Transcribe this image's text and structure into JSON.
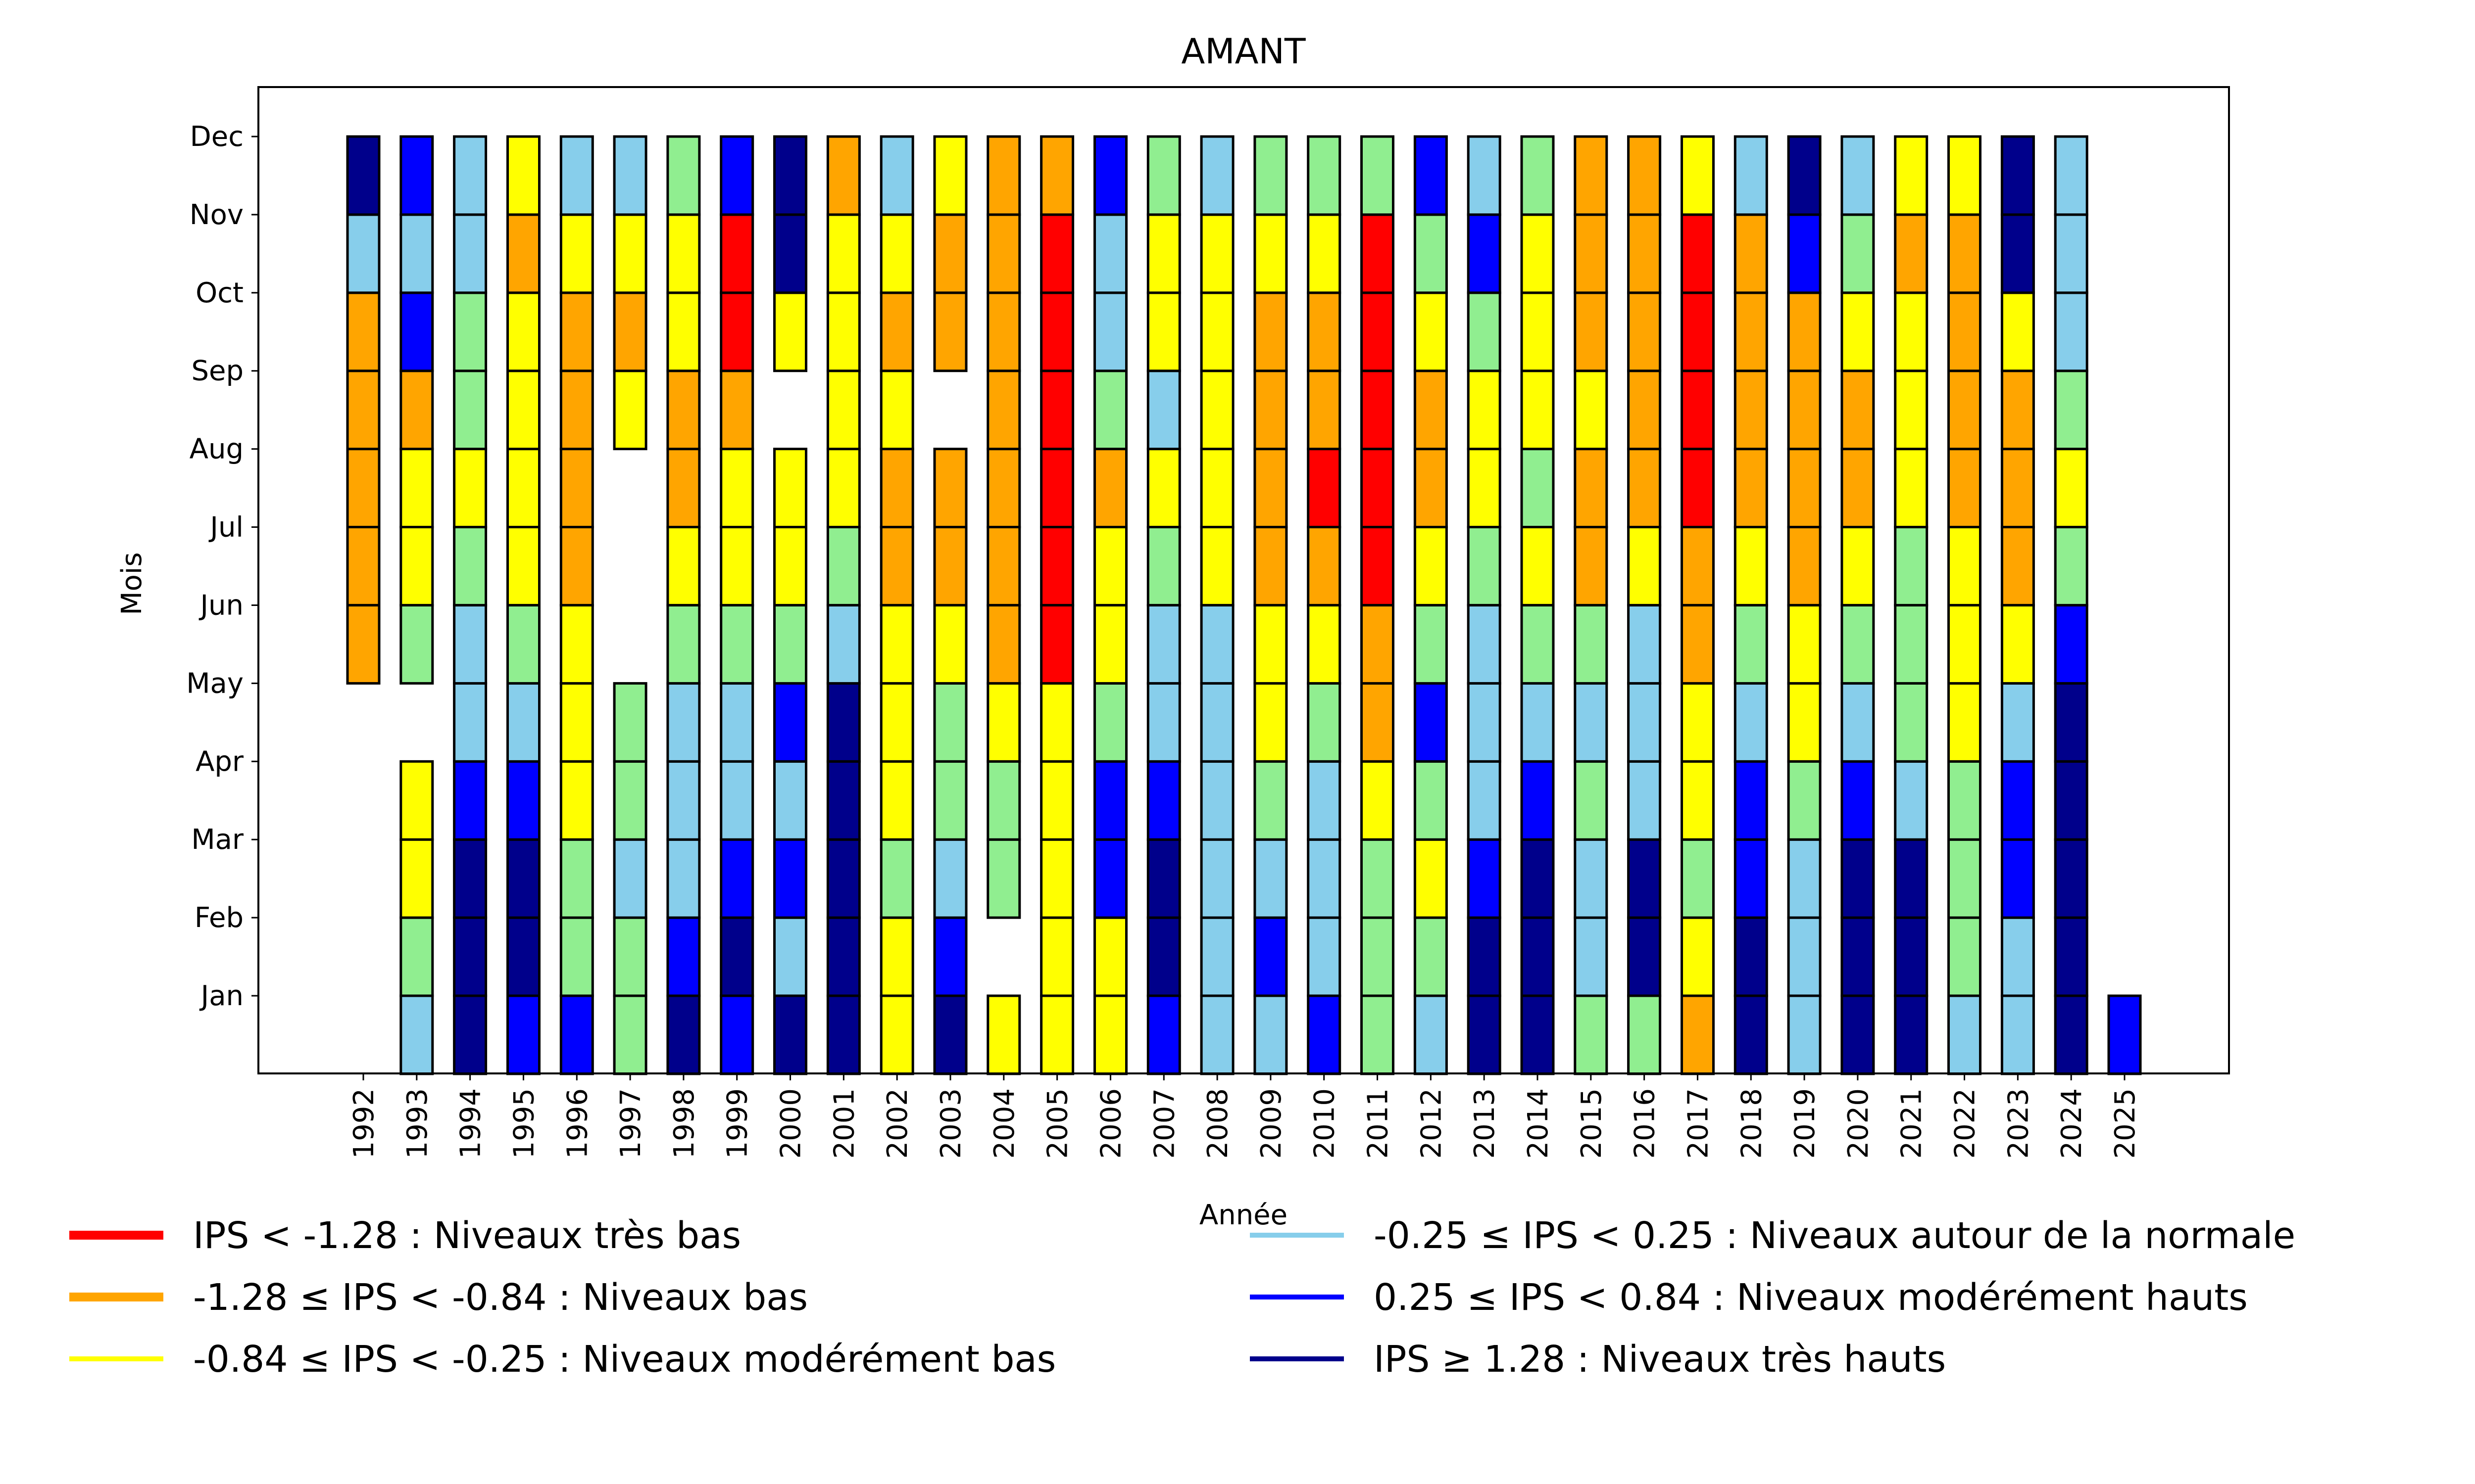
{
  "chart_data": {
    "type": "heatmap",
    "title": "AMANT",
    "xlabel": "Année",
    "ylabel": "Mois",
    "x": [
      "1992",
      "1993",
      "1994",
      "1995",
      "1996",
      "1997",
      "1998",
      "1999",
      "2000",
      "2001",
      "2002",
      "2003",
      "2004",
      "2005",
      "2006",
      "2007",
      "2008",
      "2009",
      "2010",
      "2011",
      "2012",
      "2013",
      "2014",
      "2015",
      "2016",
      "2017",
      "2018",
      "2019",
      "2020",
      "2021",
      "2022",
      "2023",
      "2024",
      "2025"
    ],
    "y": [
      "Jan",
      "Feb",
      "Mar",
      "Apr",
      "May",
      "Jun",
      "Jul",
      "Aug",
      "Sep",
      "Oct",
      "Nov",
      "Dec"
    ],
    "grid": false,
    "legend_position": "bottom",
    "categories": {
      "R": {
        "label": "IPS < -1.28 : Niveaux très bas",
        "color": "#ff0000"
      },
      "O": {
        "label": "-1.28 ≤ IPS < -0.84 : Niveaux bas",
        "color": "#ffa500"
      },
      "Y": {
        "label": "-0.84 ≤ IPS < -0.25 : Niveaux modérément bas",
        "color": "#ffff00"
      },
      "L": {
        "label": "-0.25 ≤ IPS < 0.25 : Niveaux autour de la normale",
        "color": "#87ceeb"
      },
      "G": {
        "label": "",
        "color": "#90ee90"
      },
      "B": {
        "label": "0.25 ≤ IPS < 0.84 : Niveaux modérément hauts",
        "color": "#0000ff"
      },
      "N": {
        "label": "IPS ≥ 1.28 : Niveaux très hauts",
        "color": "#00008b"
      }
    },
    "legend": [
      {
        "key": "R",
        "label": "IPS < -1.28 : Niveaux très bas",
        "color": "#ff0000"
      },
      {
        "key": "O",
        "label": "-1.28 ≤ IPS < -0.84 : Niveaux bas",
        "color": "#ffa500"
      },
      {
        "key": "Y",
        "label": "-0.84 ≤ IPS < -0.25 : Niveaux modérément bas",
        "color": "#ffff00"
      },
      {
        "key": "L",
        "label": "-0.25 ≤ IPS < 0.25 : Niveaux autour de la normale",
        "color": "#87ceeb"
      },
      {
        "key": "B",
        "label": "0.25 ≤ IPS < 0.84 : Niveaux modérément hauts",
        "color": "#0000ff"
      },
      {
        "key": "N",
        "label": "IPS ≥ 1.28 : Niveaux très hauts",
        "color": "#00008b"
      }
    ],
    "values_note": "Each year lists 12 monthly categories Jan..Dec; null = no data",
    "values": {
      "1992": [
        null,
        null,
        null,
        null,
        null,
        "O",
        "O",
        "O",
        "O",
        "O",
        "L",
        "N"
      ],
      "1993": [
        "L",
        "G",
        "Y",
        "Y",
        null,
        "G",
        "Y",
        "Y",
        "O",
        "B",
        "L",
        "B"
      ],
      "1994": [
        "N",
        "N",
        "N",
        "B",
        "L",
        "L",
        "G",
        "Y",
        "G",
        "G",
        "L",
        "L"
      ],
      "1995": [
        "B",
        "N",
        "N",
        "B",
        "L",
        "G",
        "Y",
        "Y",
        "Y",
        "Y",
        "O",
        "Y"
      ],
      "1996": [
        "B",
        "G",
        "G",
        "Y",
        "Y",
        "Y",
        "O",
        "O",
        "O",
        "O",
        "Y",
        "L"
      ],
      "1997": [
        "G",
        "G",
        "L",
        "G",
        "G",
        null,
        null,
        null,
        "Y",
        "O",
        "Y",
        "L"
      ],
      "1998": [
        "N",
        "B",
        "L",
        "L",
        "L",
        "G",
        "Y",
        "O",
        "O",
        "Y",
        "Y",
        "G"
      ],
      "1999": [
        "B",
        "N",
        "B",
        "L",
        "L",
        "G",
        "Y",
        "Y",
        "O",
        "R",
        "R",
        "B"
      ],
      "2000": [
        "N",
        "L",
        "B",
        "L",
        "B",
        "G",
        "Y",
        "Y",
        null,
        "Y",
        "N",
        "N"
      ],
      "2001": [
        "N",
        "N",
        "N",
        "N",
        "N",
        "L",
        "G",
        "Y",
        "Y",
        "Y",
        "Y",
        "O"
      ],
      "2002": [
        "Y",
        "Y",
        "G",
        "Y",
        "Y",
        "Y",
        "O",
        "O",
        "Y",
        "O",
        "Y",
        "L"
      ],
      "2003": [
        "N",
        "B",
        "L",
        "G",
        "G",
        "Y",
        "O",
        "O",
        null,
        "O",
        "O",
        "Y"
      ],
      "2004": [
        "Y",
        null,
        "G",
        "G",
        "Y",
        "O",
        "O",
        "O",
        "O",
        "O",
        "O",
        "O"
      ],
      "2005": [
        "Y",
        "Y",
        "Y",
        "Y",
        "Y",
        "R",
        "R",
        "R",
        "R",
        "R",
        "R",
        "O"
      ],
      "2006": [
        "Y",
        "Y",
        "B",
        "B",
        "G",
        "Y",
        "Y",
        "O",
        "G",
        "L",
        "L",
        "B"
      ],
      "2007": [
        "B",
        "N",
        "N",
        "B",
        "L",
        "L",
        "G",
        "Y",
        "L",
        "Y",
        "Y",
        "G"
      ],
      "2008": [
        "L",
        "L",
        "L",
        "L",
        "L",
        "L",
        "Y",
        "Y",
        "Y",
        "Y",
        "Y",
        "L"
      ],
      "2009": [
        "L",
        "B",
        "L",
        "G",
        "Y",
        "Y",
        "O",
        "O",
        "O",
        "O",
        "Y",
        "G"
      ],
      "2010": [
        "B",
        "L",
        "L",
        "L",
        "G",
        "Y",
        "O",
        "R",
        "O",
        "O",
        "Y",
        "G"
      ],
      "2011": [
        "G",
        "G",
        "G",
        "Y",
        "O",
        "O",
        "R",
        "R",
        "R",
        "R",
        "R",
        "G"
      ],
      "2012": [
        "L",
        "G",
        "Y",
        "G",
        "B",
        "G",
        "Y",
        "O",
        "O",
        "Y",
        "G",
        "B"
      ],
      "2013": [
        "N",
        "N",
        "B",
        "L",
        "L",
        "L",
        "G",
        "Y",
        "Y",
        "G",
        "B",
        "L"
      ],
      "2014": [
        "N",
        "N",
        "N",
        "B",
        "L",
        "G",
        "Y",
        "G",
        "Y",
        "Y",
        "Y",
        "G"
      ],
      "2015": [
        "G",
        "L",
        "L",
        "G",
        "L",
        "G",
        "O",
        "O",
        "Y",
        "O",
        "O",
        "O"
      ],
      "2016": [
        "G",
        "N",
        "N",
        "L",
        "L",
        "L",
        "Y",
        "O",
        "O",
        "O",
        "O",
        "O"
      ],
      "2017": [
        "O",
        "Y",
        "G",
        "Y",
        "Y",
        "O",
        "O",
        "R",
        "R",
        "R",
        "R",
        "Y"
      ],
      "2018": [
        "N",
        "N",
        "B",
        "B",
        "L",
        "G",
        "Y",
        "O",
        "O",
        "O",
        "O",
        "L"
      ],
      "2019": [
        "L",
        "L",
        "L",
        "G",
        "Y",
        "Y",
        "O",
        "O",
        "O",
        "O",
        "B",
        "N"
      ],
      "2020": [
        "N",
        "N",
        "N",
        "B",
        "L",
        "G",
        "Y",
        "O",
        "O",
        "Y",
        "G",
        "L"
      ],
      "2021": [
        "N",
        "N",
        "N",
        "L",
        "G",
        "G",
        "G",
        "Y",
        "Y",
        "Y",
        "O",
        "Y"
      ],
      "2022": [
        "L",
        "G",
        "G",
        "G",
        "Y",
        "Y",
        "Y",
        "O",
        "O",
        "O",
        "O",
        "Y"
      ],
      "2023": [
        "L",
        "L",
        "B",
        "B",
        "L",
        "Y",
        "O",
        "O",
        "O",
        "Y",
        "N",
        "N"
      ],
      "2024": [
        "N",
        "N",
        "N",
        "N",
        "N",
        "B",
        "G",
        "Y",
        "G",
        "L",
        "L",
        "L"
      ],
      "2025": [
        "B",
        null,
        null,
        null,
        null,
        null,
        null,
        null,
        null,
        null,
        null,
        null
      ]
    }
  }
}
